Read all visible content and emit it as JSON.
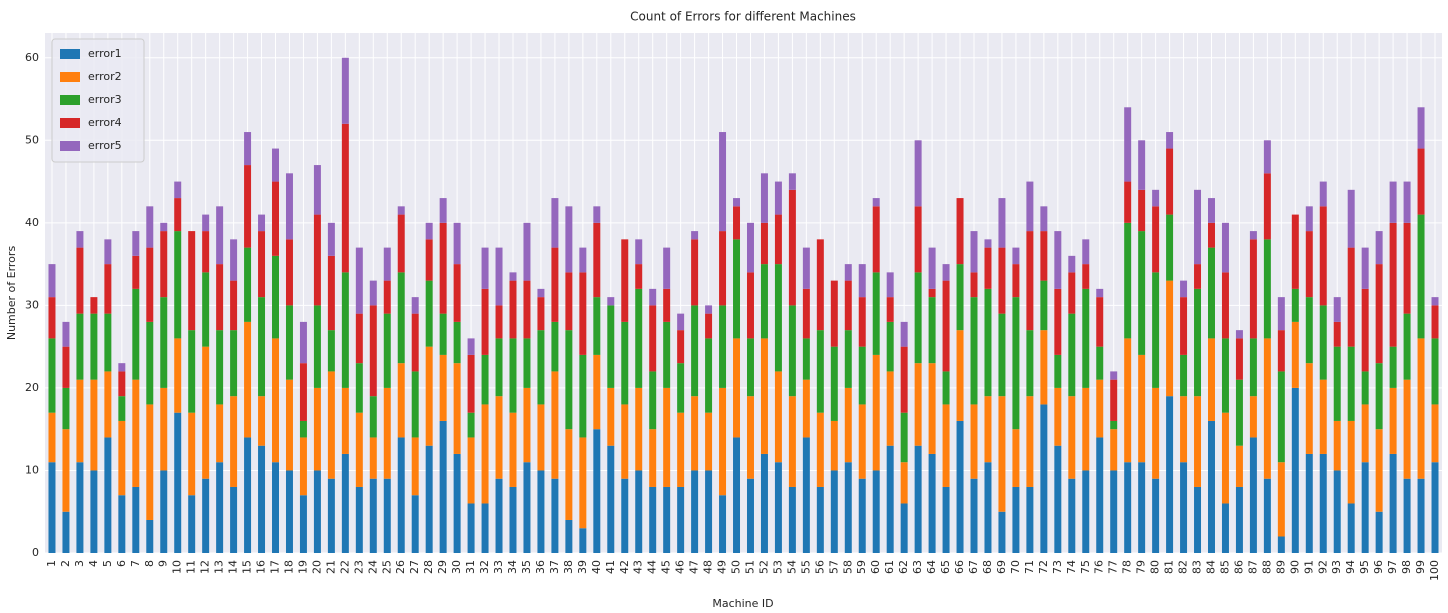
{
  "chart_data": {
    "type": "stacked_bar",
    "title": "Count of Errors for different Machines",
    "x_label": "Machine ID",
    "y_label": "Number of Errors",
    "categories": [
      "1",
      "2",
      "3",
      "4",
      "5",
      "6",
      "7",
      "8",
      "9",
      "10",
      "11",
      "12",
      "13",
      "14",
      "15",
      "16",
      "17",
      "18",
      "19",
      "20",
      "21",
      "22",
      "23",
      "24",
      "25",
      "26",
      "27",
      "28",
      "29",
      "30",
      "31",
      "32",
      "33",
      "34",
      "35",
      "36",
      "37",
      "38",
      "39",
      "40",
      "41",
      "42",
      "43",
      "44",
      "45",
      "46",
      "47",
      "48",
      "49",
      "50",
      "51",
      "52",
      "53",
      "54",
      "55",
      "56",
      "57",
      "58",
      "59",
      "60",
      "61",
      "62",
      "63",
      "64",
      "65",
      "66",
      "67",
      "68",
      "69",
      "70",
      "71",
      "72",
      "73",
      "74",
      "75",
      "76",
      "77",
      "78",
      "79",
      "80",
      "81",
      "82",
      "83",
      "84",
      "85",
      "86",
      "87",
      "88",
      "89",
      "90",
      "91",
      "92",
      "93",
      "94",
      "95",
      "96",
      "97",
      "98",
      "99",
      "100"
    ],
    "series": [
      {
        "name": "error1",
        "color": "#1f77b4",
        "values": [
          11,
          5,
          11,
          10,
          14,
          7,
          8,
          4,
          10,
          17,
          7,
          9,
          11,
          8,
          14,
          13,
          11,
          10,
          7,
          10,
          9,
          12,
          8,
          9,
          9,
          14,
          7,
          13,
          16,
          12,
          6,
          6,
          9,
          8,
          11,
          10,
          9,
          4,
          3,
          15,
          13,
          9,
          10,
          8,
          8,
          8,
          10,
          10,
          7,
          14,
          9,
          12,
          11,
          8,
          14,
          8,
          10,
          11,
          9,
          10,
          13,
          6,
          13,
          12,
          8,
          16,
          9,
          11,
          5,
          8,
          8,
          18,
          13,
          9,
          10,
          14,
          10,
          11,
          11,
          9,
          19,
          11,
          8,
          16,
          6,
          8,
          14,
          9,
          2,
          20,
          12,
          12,
          10,
          6,
          11,
          5,
          12,
          9,
          9,
          11
        ]
      },
      {
        "name": "error2",
        "color": "#ff7f0e",
        "values": [
          6,
          10,
          10,
          11,
          8,
          9,
          13,
          14,
          10,
          9,
          10,
          16,
          7,
          11,
          14,
          6,
          15,
          11,
          7,
          10,
          13,
          8,
          9,
          5,
          11,
          9,
          7,
          12,
          8,
          11,
          8,
          12,
          10,
          9,
          9,
          8,
          13,
          11,
          11,
          9,
          7,
          9,
          10,
          7,
          12,
          9,
          9,
          7,
          13,
          12,
          10,
          14,
          11,
          11,
          7,
          9,
          6,
          9,
          9,
          14,
          9,
          5,
          10,
          11,
          10,
          11,
          9,
          8,
          14,
          7,
          11,
          9,
          7,
          10,
          10,
          7,
          5,
          15,
          13,
          11,
          14,
          8,
          11,
          10,
          11,
          5,
          5,
          17,
          9,
          8,
          11,
          9,
          6,
          10,
          7,
          10,
          8,
          12,
          17,
          7
        ]
      },
      {
        "name": "error3",
        "color": "#2ca02c",
        "values": [
          9,
          5,
          8,
          8,
          7,
          3,
          11,
          10,
          11,
          13,
          10,
          9,
          9,
          8,
          9,
          12,
          10,
          9,
          2,
          10,
          5,
          14,
          6,
          5,
          9,
          11,
          8,
          8,
          5,
          5,
          3,
          6,
          7,
          9,
          6,
          9,
          6,
          12,
          10,
          7,
          10,
          10,
          12,
          7,
          8,
          6,
          11,
          9,
          10,
          12,
          7,
          9,
          13,
          11,
          5,
          10,
          9,
          7,
          7,
          10,
          6,
          6,
          11,
          8,
          4,
          8,
          13,
          13,
          10,
          16,
          8,
          6,
          4,
          10,
          12,
          4,
          1,
          14,
          15,
          14,
          8,
          5,
          13,
          11,
          9,
          8,
          7,
          12,
          11,
          4,
          8,
          9,
          9,
          9,
          4,
          8,
          5,
          8,
          15,
          8
        ]
      },
      {
        "name": "error4",
        "color": "#d62728",
        "values": [
          5,
          5,
          8,
          2,
          6,
          3,
          4,
          9,
          8,
          4,
          12,
          5,
          8,
          6,
          10,
          8,
          9,
          8,
          7,
          11,
          9,
          18,
          6,
          11,
          4,
          7,
          7,
          5,
          11,
          7,
          7,
          8,
          4,
          7,
          7,
          4,
          9,
          7,
          10,
          9,
          0,
          10,
          3,
          8,
          4,
          4,
          8,
          3,
          9,
          4,
          8,
          5,
          6,
          14,
          6,
          11,
          8,
          6,
          6,
          8,
          3,
          8,
          8,
          1,
          11,
          8,
          3,
          5,
          8,
          4,
          12,
          6,
          8,
          5,
          3,
          6,
          5,
          5,
          5,
          8,
          8,
          7,
          3,
          3,
          8,
          5,
          12,
          8,
          5,
          9,
          8,
          12,
          3,
          12,
          10,
          12,
          15,
          11,
          8,
          4
        ]
      },
      {
        "name": "error5",
        "color": "#9467bd",
        "values": [
          4,
          3,
          2,
          0,
          3,
          1,
          3,
          5,
          1,
          2,
          0,
          2,
          7,
          5,
          4,
          2,
          4,
          8,
          5,
          6,
          4,
          8,
          8,
          3,
          4,
          1,
          2,
          2,
          3,
          5,
          2,
          5,
          7,
          1,
          7,
          1,
          6,
          8,
          3,
          2,
          1,
          0,
          3,
          2,
          5,
          2,
          1,
          1,
          12,
          1,
          6,
          6,
          4,
          2,
          5,
          0,
          0,
          2,
          4,
          1,
          3,
          3,
          8,
          5,
          2,
          0,
          5,
          1,
          6,
          2,
          6,
          3,
          7,
          2,
          3,
          1,
          1,
          9,
          6,
          2,
          2,
          2,
          9,
          3,
          6,
          1,
          1,
          4,
          4,
          0,
          3,
          3,
          3,
          7,
          5,
          4,
          5,
          5,
          5,
          1
        ]
      }
    ],
    "ylim": [
      0,
      63
    ],
    "yticks": [
      0,
      10,
      20,
      30,
      40,
      50,
      60
    ],
    "grid": true,
    "legend": "upper left"
  }
}
